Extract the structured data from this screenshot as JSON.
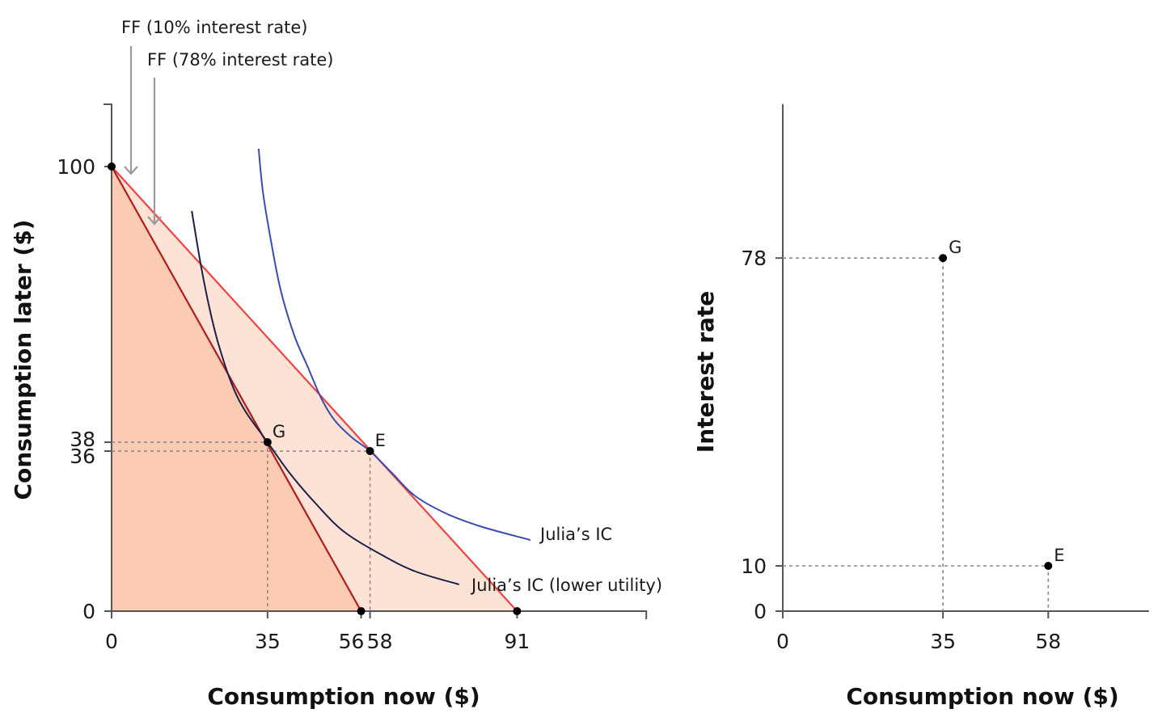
{
  "chart_data": [
    {
      "type": "line",
      "xlabel": "Consumption now ($)",
      "ylabel": "Consumption later ($)",
      "xlim": [
        0,
        120
      ],
      "ylim": [
        0,
        114
      ],
      "x_ticks": [
        0,
        35,
        56,
        58,
        91
      ],
      "y_ticks": [
        0,
        36,
        38,
        100
      ],
      "series": [
        {
          "name": "FF (10% interest rate)",
          "kind": "budget-line",
          "color": "#ef4444",
          "x": [
            0,
            91
          ],
          "y": [
            100,
            0
          ]
        },
        {
          "name": "FF (78% interest rate)",
          "kind": "budget-line",
          "color": "#b01c1c",
          "x": [
            0,
            56
          ],
          "y": [
            100,
            0
          ]
        },
        {
          "name": "Julia’s IC",
          "kind": "indifference-curve",
          "color": "#3b4bb0",
          "x": [
            33,
            34,
            36,
            38,
            41,
            44,
            47,
            50,
            54,
            58,
            63,
            68,
            75,
            83,
            94
          ],
          "y": [
            104,
            94,
            82,
            72,
            62,
            55,
            48,
            43,
            39,
            36,
            31,
            26,
            22,
            19,
            16
          ]
        },
        {
          "name": "Julia’s IC (lower utility)",
          "kind": "indifference-curve",
          "color": "#1b1f4a",
          "x": [
            18,
            20,
            22,
            24,
            27,
            30,
            35,
            40,
            46,
            52,
            60,
            68,
            78
          ],
          "y": [
            90,
            78,
            68,
            60,
            51,
            45,
            38,
            31,
            24,
            18,
            13,
            9,
            6
          ]
        }
      ],
      "points": [
        {
          "label": "",
          "x": 0,
          "y": 100
        },
        {
          "label": "G",
          "x": 35,
          "y": 38
        },
        {
          "label": "E",
          "x": 58,
          "y": 36
        },
        {
          "label": "",
          "x": 56,
          "y": 0
        },
        {
          "label": "",
          "x": 91,
          "y": 0
        }
      ],
      "fills": [
        {
          "name": "feasible set 78%",
          "color": "#fbcbb2"
        },
        {
          "name": "feasible set 10%",
          "color": "#fde3d6"
        }
      ],
      "annotations": [
        {
          "text": "FF (10% interest rate)"
        },
        {
          "text": "FF (78% interest rate)"
        },
        {
          "text": "Julia’s IC"
        },
        {
          "text": "Julia’s IC (lower utility)"
        }
      ],
      "grid": false
    },
    {
      "type": "scatter",
      "xlabel": "Consumption now ($)",
      "ylabel": "Interest rate",
      "xlim": [
        0,
        80
      ],
      "ylim": [
        0,
        112
      ],
      "x_ticks": [
        0,
        35,
        58
      ],
      "y_ticks": [
        0,
        10,
        78
      ],
      "points": [
        {
          "label": "G",
          "x": 35,
          "y": 78
        },
        {
          "label": "E",
          "x": 58,
          "y": 10
        }
      ],
      "grid": false
    }
  ]
}
